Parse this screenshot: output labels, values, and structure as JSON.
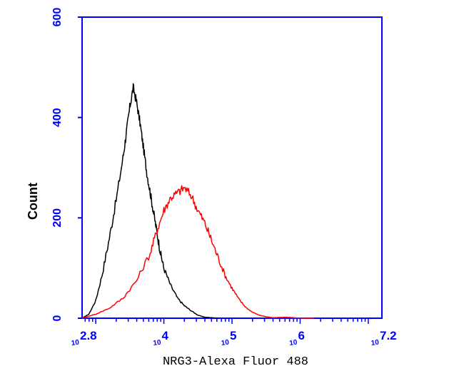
{
  "chart_data": {
    "type": "line",
    "xlabel": "NRG3-Alexa Fluor 488",
    "ylabel": "Count",
    "x_scale": "log",
    "xlim": [
      2.8,
      7.2
    ],
    "ylim": [
      0,
      600
    ],
    "x_tick_labels": [
      {
        "base": "10",
        "exp": "2.8"
      },
      {
        "base": "10",
        "exp": "4"
      },
      {
        "base": "10",
        "exp": "5"
      },
      {
        "base": "10",
        "exp": "6"
      },
      {
        "base": "10",
        "exp": "7.2"
      }
    ],
    "y_tick_labels": [
      "0",
      "200",
      "400",
      "600"
    ],
    "y_ticks": [
      0,
      200,
      400,
      600
    ],
    "x_ticks": [
      2.8,
      4,
      5,
      6,
      7.2
    ],
    "grid": false,
    "series": [
      {
        "color": "#000000",
        "x": [
          2.8,
          2.9,
          3.0,
          3.1,
          3.2,
          3.3,
          3.4,
          3.45,
          3.5,
          3.55,
          3.6,
          3.65,
          3.7,
          3.75,
          3.8,
          3.85,
          3.9,
          3.95,
          4.0,
          4.1,
          4.2,
          4.3,
          4.4,
          4.5,
          4.6,
          4.7,
          4.8
        ],
        "y": [
          0,
          8,
          35,
          90,
          160,
          235,
          320,
          370,
          420,
          460,
          430,
          390,
          340,
          290,
          250,
          210,
          170,
          130,
          100,
          65,
          40,
          25,
          15,
          6,
          2,
          1,
          0
        ]
      },
      {
        "color": "#ff0000",
        "x": [
          2.8,
          3.0,
          3.2,
          3.4,
          3.6,
          3.8,
          3.9,
          4.0,
          4.1,
          4.2,
          4.3,
          4.4,
          4.5,
          4.6,
          4.7,
          4.8,
          4.9,
          5.0,
          5.1,
          5.2,
          5.3,
          5.4,
          5.5,
          5.6,
          5.8,
          6.0,
          6.2
        ],
        "y": [
          0,
          8,
          20,
          40,
          75,
          130,
          175,
          215,
          240,
          250,
          260,
          245,
          215,
          190,
          155,
          120,
          85,
          60,
          38,
          22,
          12,
          6,
          3,
          1,
          2,
          0,
          0
        ]
      }
    ]
  },
  "colors": {
    "axis": "#0000ff",
    "axis_title": "#000000"
  }
}
